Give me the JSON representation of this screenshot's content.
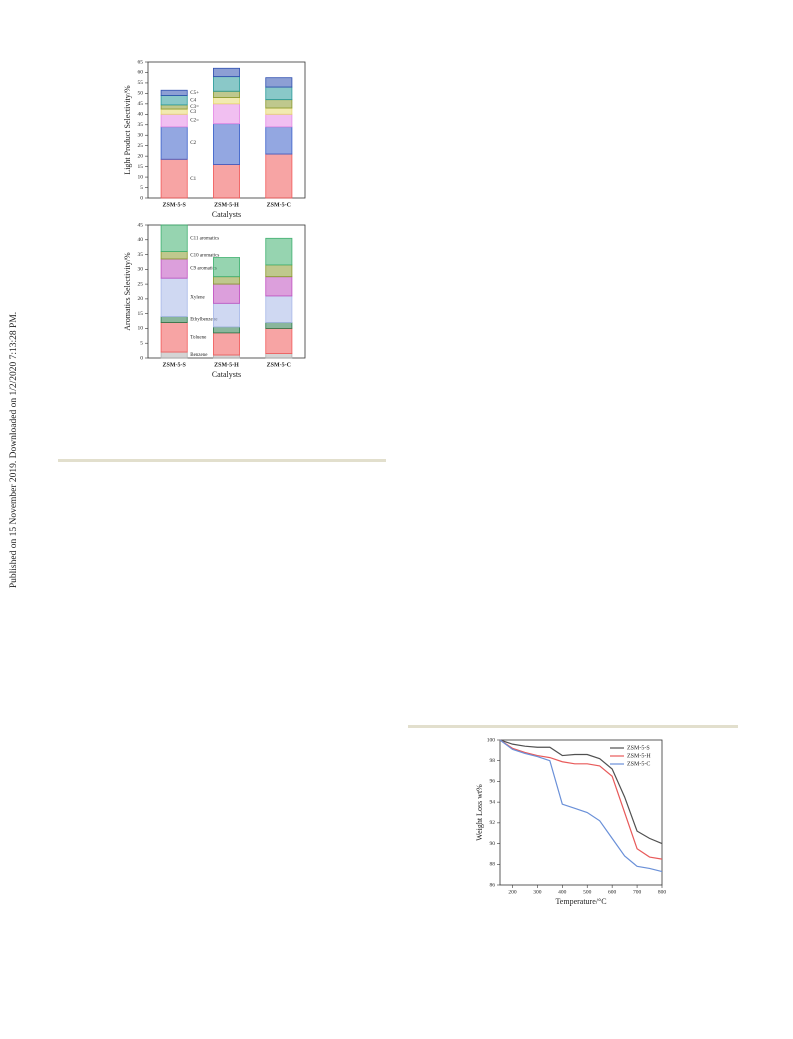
{
  "side_note": "Published on 15 November 2019. Downloaded on 1/2/2020 7:13:28 PM.",
  "chart_data": [
    {
      "type": "bar",
      "stacked": true,
      "y_label": "Light Product Selectivity/%",
      "x_label": "Catalysts",
      "categories": [
        "ZSM-5-S",
        "ZSM-5-H",
        "ZSM-5-C"
      ],
      "ylim": [
        0,
        65
      ],
      "yticks": [
        0,
        5,
        10,
        15,
        20,
        25,
        30,
        35,
        40,
        45,
        50,
        55,
        60,
        65
      ],
      "series": [
        {
          "name": "C1",
          "color": "#f05a5a",
          "values": [
            18.5,
            16,
            21
          ]
        },
        {
          "name": "C2",
          "color": "#3a5fc8",
          "values": [
            15.5,
            19.5,
            13
          ]
        },
        {
          "name": "C2=",
          "color": "#e58ae5",
          "values": [
            6,
            9.5,
            6
          ]
        },
        {
          "name": "C3",
          "color": "#e8d870",
          "values": [
            2.5,
            3,
            3
          ]
        },
        {
          "name": "C3=",
          "color": "#8a9a30",
          "values": [
            2,
            3,
            4
          ]
        },
        {
          "name": "C4",
          "color": "#2a9a9a",
          "values": [
            4.5,
            7,
            6
          ]
        },
        {
          "name": "C5+",
          "color": "#3050b0",
          "values": [
            2.5,
            4,
            4.5
          ]
        }
      ]
    },
    {
      "type": "bar",
      "stacked": true,
      "y_label": "Aromatics Selectivity/%",
      "x_label": "Catalysts",
      "categories": [
        "ZSM-5-S",
        "ZSM-5-H",
        "ZSM-5-C"
      ],
      "ylim": [
        0,
        45
      ],
      "yticks": [
        0,
        5,
        10,
        15,
        20,
        25,
        30,
        35,
        40,
        45
      ],
      "series": [
        {
          "name": "Benzene",
          "color": "#b0b0b0",
          "values": [
            2,
            1,
            1.5
          ]
        },
        {
          "name": "Toluene",
          "color": "#f05a5a",
          "values": [
            10,
            7.5,
            8.5
          ]
        },
        {
          "name": "Ethylbenzene",
          "color": "#2a7a4a",
          "values": [
            2,
            2,
            2
          ]
        },
        {
          "name": "Xylene",
          "color": "#a8b8e8",
          "values": [
            13,
            8,
            9
          ]
        },
        {
          "name": "C9 aromatics",
          "color": "#c050c0",
          "values": [
            6.5,
            6.5,
            6.5
          ]
        },
        {
          "name": "C10 aromatics",
          "color": "#8a9a30",
          "values": [
            2.5,
            2.5,
            4
          ]
        },
        {
          "name": "C11 aromatics",
          "color": "#40b070",
          "values": [
            9,
            6.5,
            9
          ]
        }
      ]
    },
    {
      "type": "line",
      "y_label": "Weight Loss wt%",
      "x_label": "Temperature/°C",
      "x": [
        150,
        200,
        250,
        300,
        350,
        400,
        450,
        500,
        550,
        600,
        650,
        700,
        750,
        800
      ],
      "xlim": [
        150,
        800
      ],
      "xticks": [
        200,
        300,
        400,
        500,
        600,
        700,
        800
      ],
      "ylim": [
        86,
        100
      ],
      "yticks": [
        86,
        88,
        90,
        92,
        94,
        96,
        98,
        100
      ],
      "legend": "upper right",
      "series": [
        {
          "name": "ZSM-5-S",
          "color": "#505050",
          "values": [
            100,
            99.6,
            99.4,
            99.3,
            99.3,
            98.5,
            98.6,
            98.6,
            98.2,
            97.2,
            94.5,
            91.2,
            90.5,
            90.0
          ]
        },
        {
          "name": "ZSM-5-H",
          "color": "#e85a5a",
          "values": [
            100,
            99.2,
            98.8,
            98.5,
            98.3,
            97.9,
            97.7,
            97.7,
            97.5,
            96.5,
            93,
            89.5,
            88.7,
            88.5
          ]
        },
        {
          "name": "ZSM-5-C",
          "color": "#6a90d8",
          "values": [
            100,
            99.1,
            98.7,
            98.4,
            98.0,
            93.8,
            93.4,
            93.0,
            92.2,
            90.5,
            88.8,
            87.8,
            87.6,
            87.3
          ]
        }
      ]
    }
  ]
}
